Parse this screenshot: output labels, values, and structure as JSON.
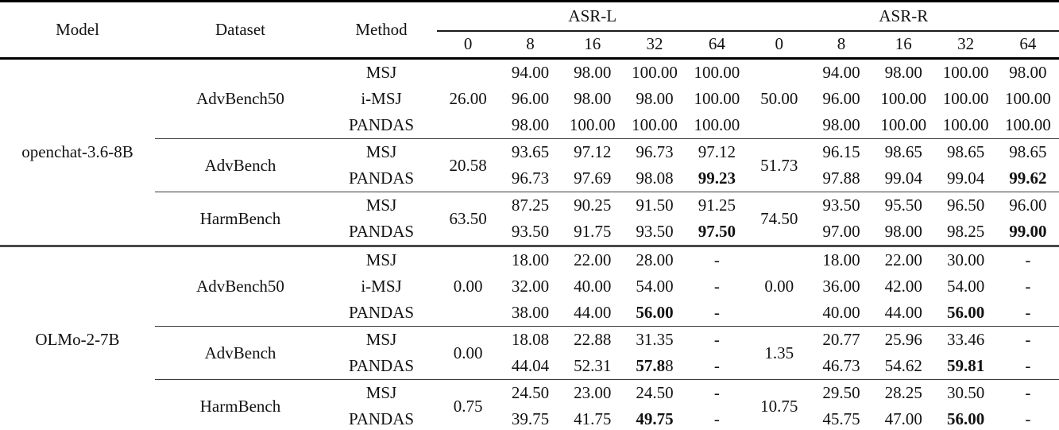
{
  "table": {
    "header": {
      "model": "Model",
      "dataset": "Dataset",
      "method": "Method",
      "groups": [
        {
          "label": "ASR-L",
          "cols": [
            "0",
            "8",
            "16",
            "32",
            "64"
          ]
        },
        {
          "label": "ASR-R",
          "cols": [
            "0",
            "8",
            "16",
            "32",
            "64"
          ]
        }
      ]
    },
    "models": [
      {
        "name": "openchat-3.6-8B",
        "datasets": [
          {
            "name": "AdvBench50",
            "zero_l": "26.00",
            "zero_r": "50.00",
            "rows": [
              {
                "method": "MSJ",
                "l": [
                  "94.00",
                  "98.00",
                  "100.00",
                  "100.00"
                ],
                "r": [
                  "94.00",
                  "98.00",
                  "100.00",
                  "98.00"
                ]
              },
              {
                "method": "i-MSJ",
                "l": [
                  "96.00",
                  "98.00",
                  "98.00",
                  "100.00"
                ],
                "r": [
                  "96.00",
                  "100.00",
                  "100.00",
                  "100.00"
                ]
              },
              {
                "method": "PANDAS",
                "l": [
                  "98.00",
                  "100.00",
                  "100.00",
                  "100.00"
                ],
                "r": [
                  "98.00",
                  "100.00",
                  "100.00",
                  "100.00"
                ]
              }
            ]
          },
          {
            "name": "AdvBench",
            "zero_l": "20.58",
            "zero_r": "51.73",
            "rows": [
              {
                "method": "MSJ",
                "l": [
                  "93.65",
                  "97.12",
                  "96.73",
                  "97.12"
                ],
                "r": [
                  "96.15",
                  "98.65",
                  "98.65",
                  "98.65"
                ]
              },
              {
                "method": "PANDAS",
                "l": [
                  "96.73",
                  "97.69",
                  "98.08",
                  {
                    "b": "99.23"
                  }
                ],
                "r": [
                  "97.88",
                  "99.04",
                  "99.04",
                  {
                    "b": "99.62"
                  }
                ]
              }
            ]
          },
          {
            "name": "HarmBench",
            "zero_l": "63.50",
            "zero_r": "74.50",
            "rows": [
              {
                "method": "MSJ",
                "l": [
                  "87.25",
                  "90.25",
                  "91.50",
                  "91.25"
                ],
                "r": [
                  "93.50",
                  "95.50",
                  "96.50",
                  "96.00"
                ]
              },
              {
                "method": "PANDAS",
                "l": [
                  "93.50",
                  "91.75",
                  "93.50",
                  {
                    "b": "97.50"
                  }
                ],
                "r": [
                  "97.00",
                  "98.00",
                  "98.25",
                  {
                    "b": "99.00"
                  }
                ]
              }
            ]
          }
        ]
      },
      {
        "name": "OLMo-2-7B",
        "datasets": [
          {
            "name": "AdvBench50",
            "zero_l": "0.00",
            "zero_r": "0.00",
            "rows": [
              {
                "method": "MSJ",
                "l": [
                  "18.00",
                  "22.00",
                  "28.00",
                  "-"
                ],
                "r": [
                  "18.00",
                  "22.00",
                  "30.00",
                  "-"
                ]
              },
              {
                "method": "i-MSJ",
                "l": [
                  "32.00",
                  "40.00",
                  "54.00",
                  "-"
                ],
                "r": [
                  "36.00",
                  "42.00",
                  "54.00",
                  "-"
                ]
              },
              {
                "method": "PANDAS",
                "l": [
                  "38.00",
                  "44.00",
                  {
                    "b": "56.00"
                  },
                  "-"
                ],
                "r": [
                  "40.00",
                  "44.00",
                  {
                    "b": "56.00"
                  },
                  "-"
                ]
              }
            ]
          },
          {
            "name": "AdvBench",
            "zero_l": "0.00",
            "zero_r": "1.35",
            "rows": [
              {
                "method": "MSJ",
                "l": [
                  "18.08",
                  "22.88",
                  "31.35",
                  "-"
                ],
                "r": [
                  "20.77",
                  "25.96",
                  "33.46",
                  "-"
                ]
              },
              {
                "method": "PANDAS",
                "l": [
                  "44.04",
                  "52.31",
                  {
                    "b": "57.8",
                    "r": "8"
                  },
                  "-"
                ],
                "r": [
                  "46.73",
                  "54.62",
                  {
                    "b": "59.81"
                  },
                  "-"
                ]
              }
            ]
          },
          {
            "name": "HarmBench",
            "zero_l": "0.75",
            "zero_r": "10.75",
            "rows": [
              {
                "method": "MSJ",
                "l": [
                  "24.50",
                  "23.00",
                  "24.50",
                  "-"
                ],
                "r": [
                  "29.50",
                  "28.25",
                  "30.50",
                  "-"
                ]
              },
              {
                "method": "PANDAS",
                "l": [
                  "39.75",
                  "41.75",
                  {
                    "b": "49.75"
                  },
                  "-"
                ],
                "r": [
                  "45.75",
                  "47.00",
                  {
                    "b": "56.00"
                  },
                  "-"
                ]
              }
            ]
          }
        ]
      }
    ]
  }
}
